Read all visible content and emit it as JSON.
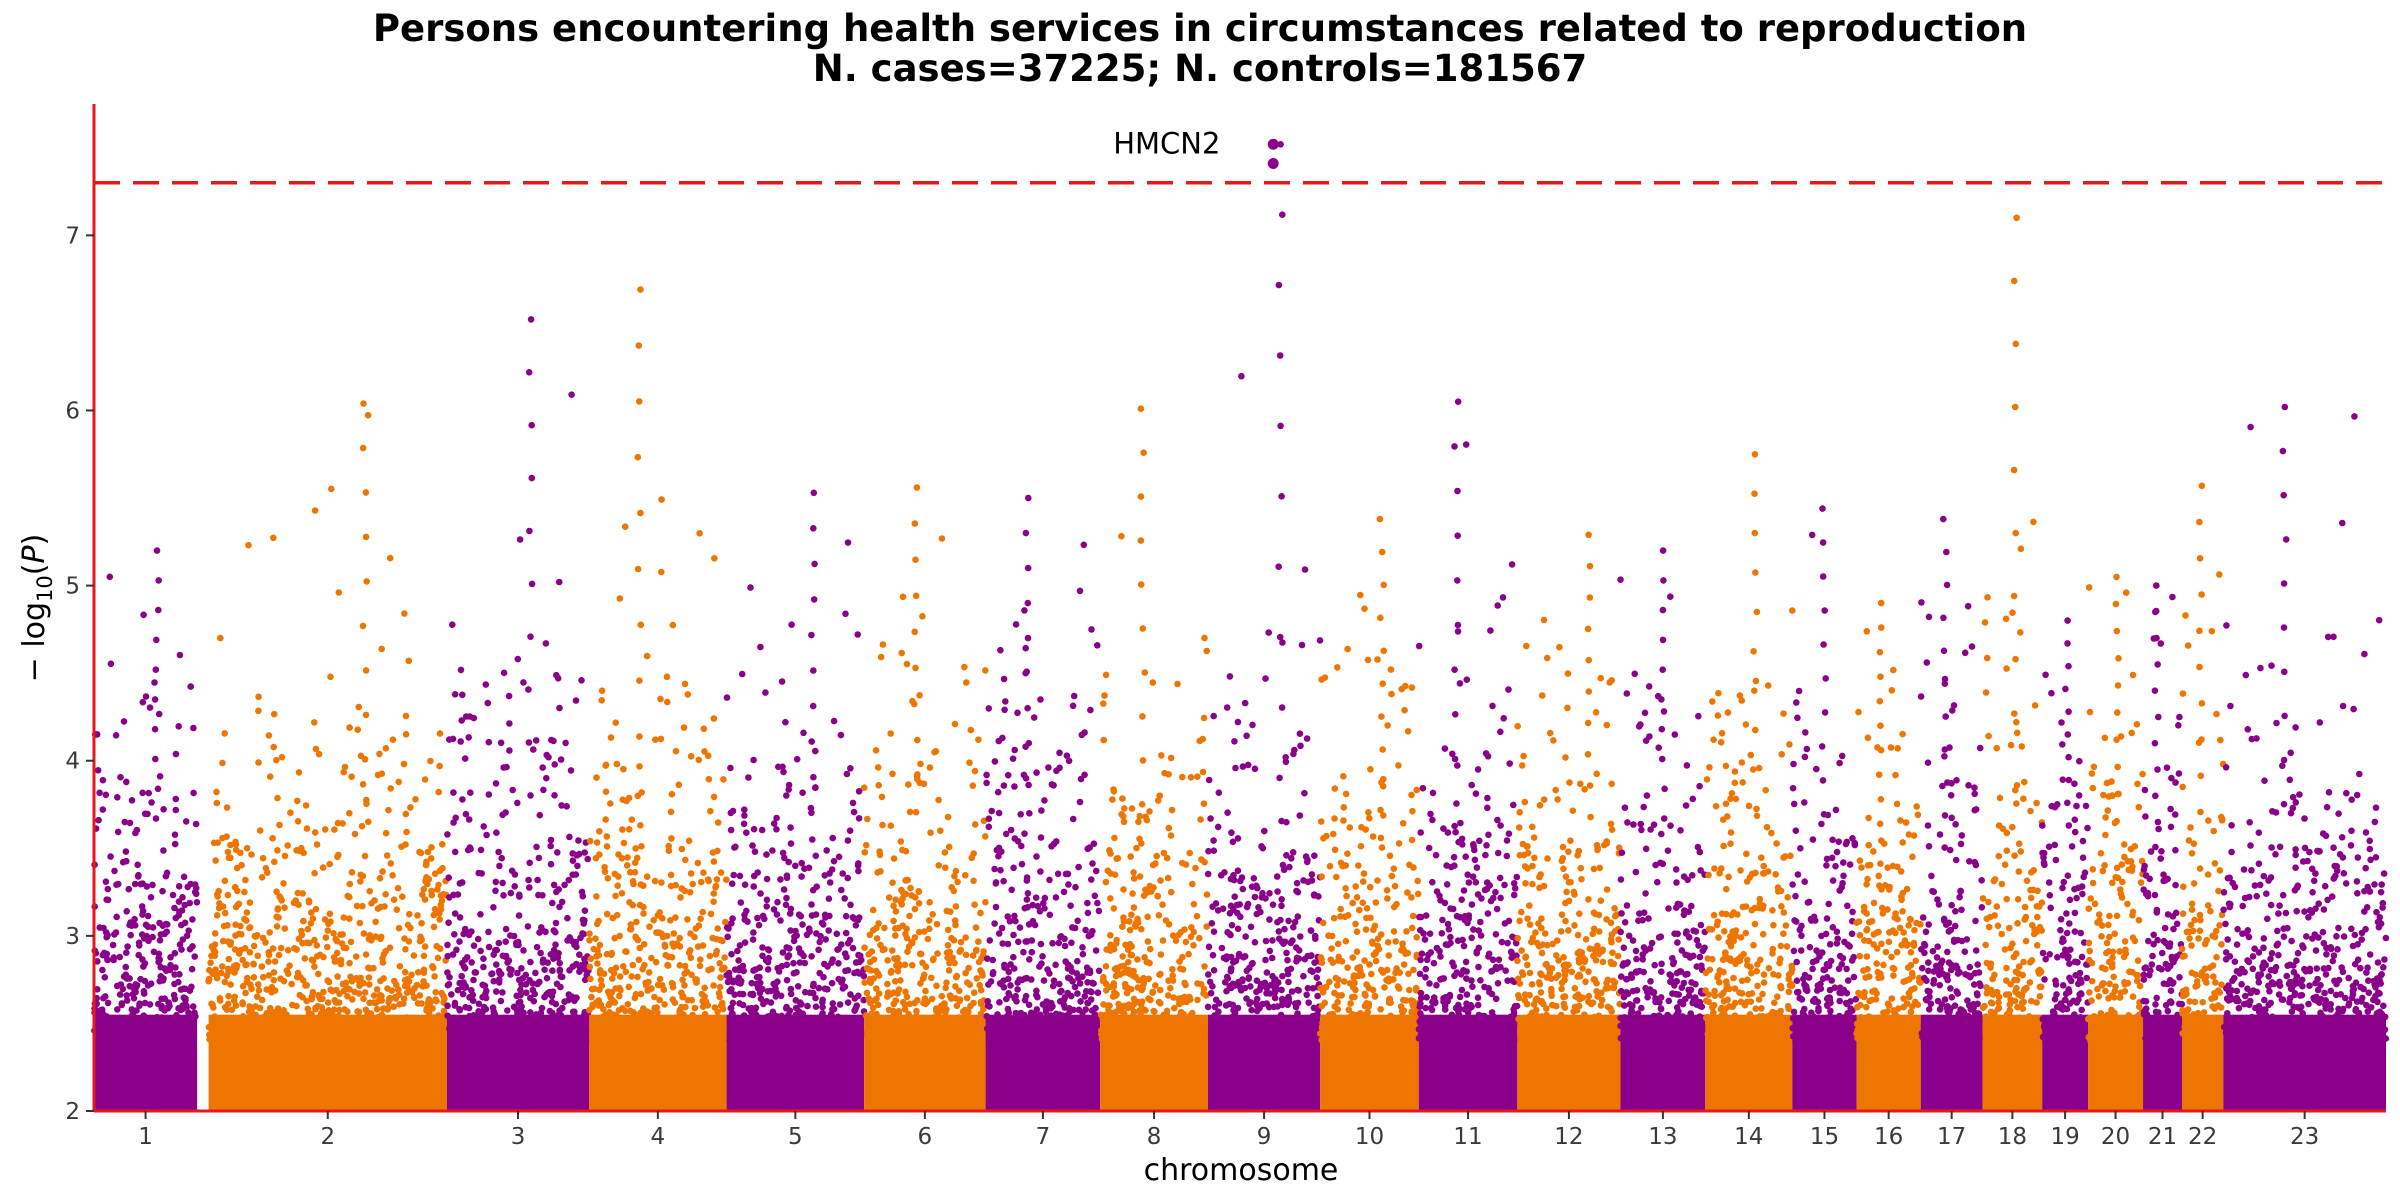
{
  "chart_data": {
    "type": "scatter",
    "subtype": "manhattan",
    "title": "Persons encountering health services in circumstances related to reproduction",
    "subtitle": "N. cases=37225; N. controls=181567",
    "xlabel": "chromosome",
    "ylabel": "−log₁₀(P)",
    "ylim": [
      2,
      7.75
    ],
    "yticks": [
      2,
      3,
      4,
      5,
      6,
      7
    ],
    "significance_threshold": 7.3,
    "threshold_color": "#e31a1c",
    "axis_color": "#e31a1c",
    "colors": [
      "#8b008b",
      "#ee7600"
    ],
    "grid": false,
    "chromosomes": [
      {
        "label": "1",
        "span": [
          0.0,
          0.045
        ],
        "max": 5.2
      },
      {
        "label": "2",
        "span": [
          0.05,
          0.154
        ],
        "max": 6.04
      },
      {
        "label": "3",
        "span": [
          0.154,
          0.216
        ],
        "max": 6.52
      },
      {
        "label": "4",
        "span": [
          0.216,
          0.276
        ],
        "max": 6.69
      },
      {
        "label": "5",
        "span": [
          0.276,
          0.336
        ],
        "max": 5.53
      },
      {
        "label": "6",
        "span": [
          0.336,
          0.389
        ],
        "max": 5.56
      },
      {
        "label": "7",
        "span": [
          0.389,
          0.439
        ],
        "max": 5.5
      },
      {
        "label": "8",
        "span": [
          0.439,
          0.486
        ],
        "max": 6.01
      },
      {
        "label": "9",
        "span": [
          0.486,
          0.535
        ],
        "max": 7.52
      },
      {
        "label": "10",
        "span": [
          0.535,
          0.578
        ],
        "max": 5.38
      },
      {
        "label": "11",
        "span": [
          0.578,
          0.621
        ],
        "max": 6.05
      },
      {
        "label": "12",
        "span": [
          0.621,
          0.666
        ],
        "max": 5.29
      },
      {
        "label": "13",
        "span": [
          0.666,
          0.703
        ],
        "max": 5.2
      },
      {
        "label": "14",
        "span": [
          0.703,
          0.741
        ],
        "max": 5.75
      },
      {
        "label": "15",
        "span": [
          0.741,
          0.769
        ],
        "max": 5.44
      },
      {
        "label": "16",
        "span": [
          0.769,
          0.797
        ],
        "max": 4.9
      },
      {
        "label": "17",
        "span": [
          0.797,
          0.824
        ],
        "max": 5.38
      },
      {
        "label": "18",
        "span": [
          0.824,
          0.85
        ],
        "max": 7.1
      },
      {
        "label": "19",
        "span": [
          0.85,
          0.87
        ],
        "max": 4.8
      },
      {
        "label": "20",
        "span": [
          0.87,
          0.894
        ],
        "max": 5.05
      },
      {
        "label": "21",
        "span": [
          0.894,
          0.911
        ],
        "max": 5.0
      },
      {
        "label": "22",
        "span": [
          0.911,
          0.929
        ],
        "max": 5.57
      },
      {
        "label": "23",
        "span": [
          0.929,
          1.0
        ],
        "max": 6.02
      }
    ],
    "top_hits": [
      {
        "chromosome": "9",
        "gene": "HMCN2",
        "values": [
          7.52,
          7.41
        ]
      }
    ]
  }
}
